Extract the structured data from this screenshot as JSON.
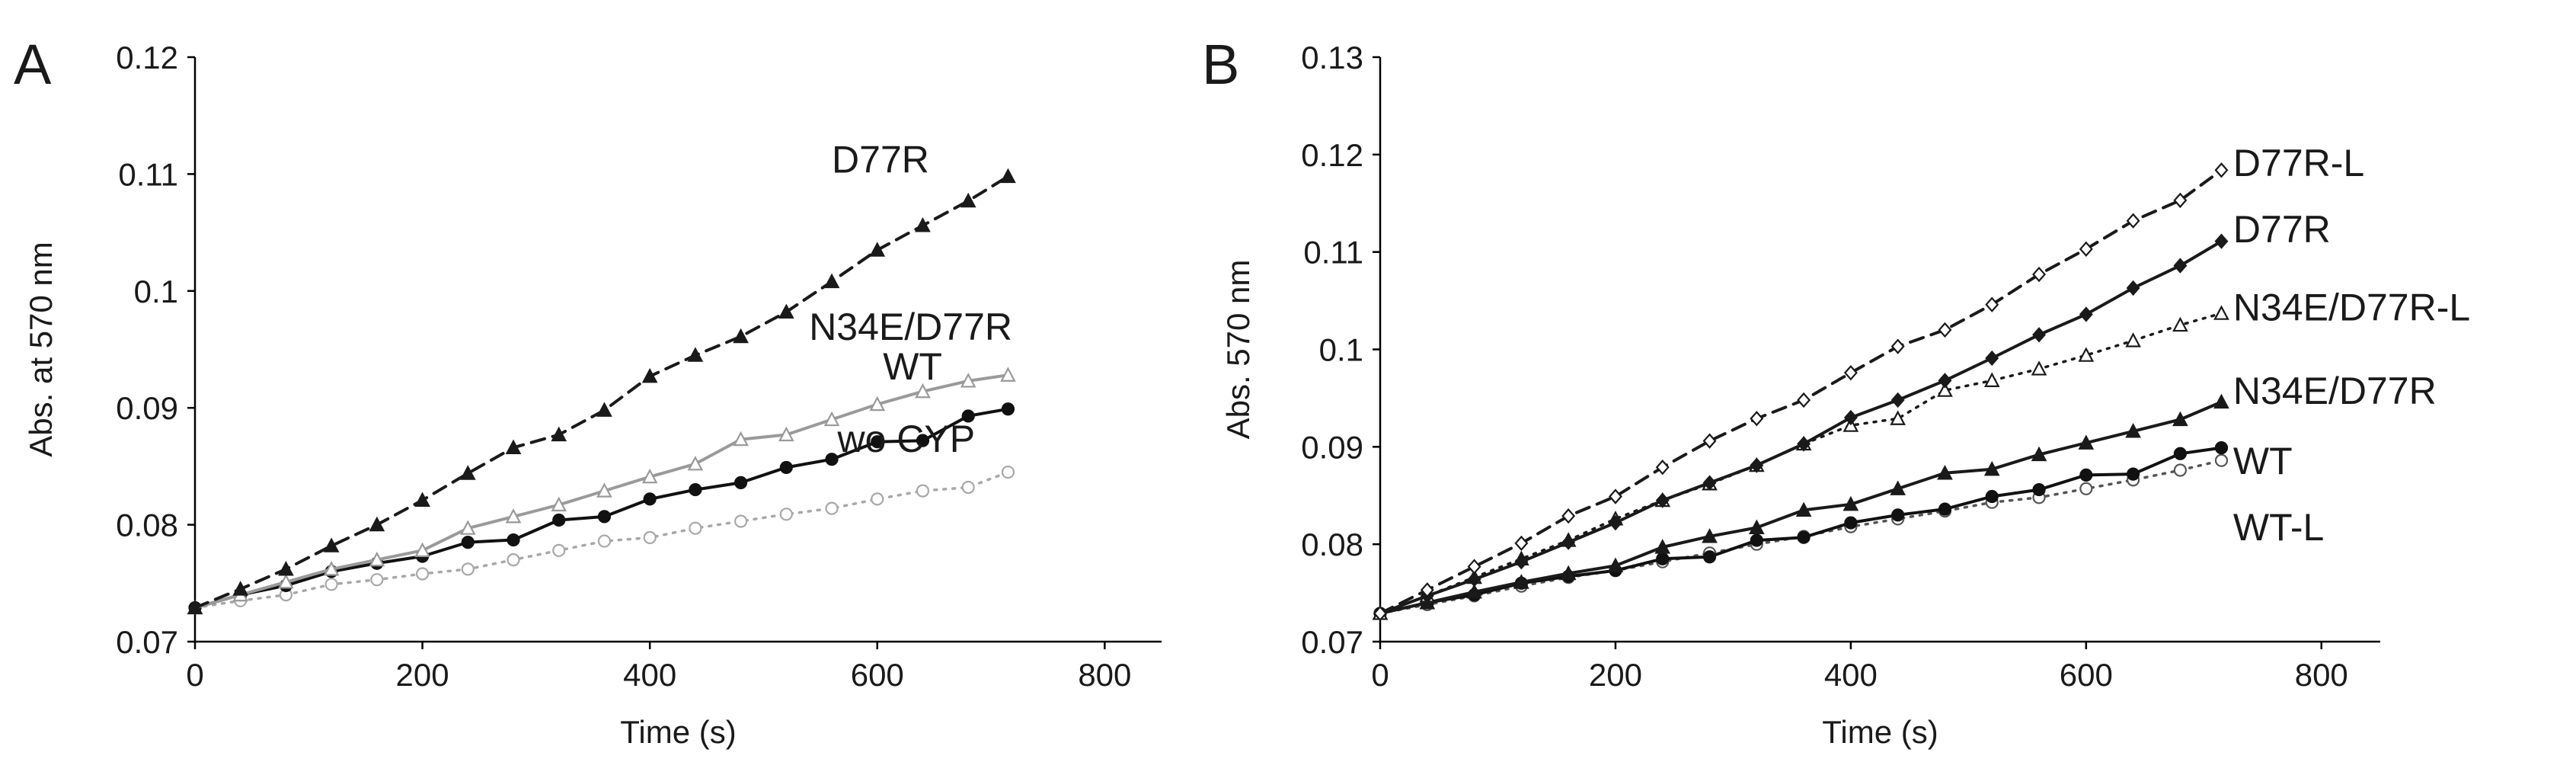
{
  "chart_data": [
    {
      "type": "line",
      "panel": "A",
      "title": "",
      "xlabel": "Time (s)",
      "ylabel": "Abs. at 570 nm",
      "xlim": [
        0,
        850
      ],
      "ylim": [
        0.07,
        0.12
      ],
      "x_ticks": [
        0,
        200,
        400,
        600,
        800
      ],
      "x_tick_labels": [
        "0",
        "200",
        "400",
        "600",
        "800"
      ],
      "y_ticks": [
        0.07,
        0.08,
        0.09,
        0.1,
        0.11,
        0.12
      ],
      "y_tick_labels": [
        "0.07",
        "0.08",
        "0.09",
        "0.1",
        "0.11",
        "0.12"
      ],
      "grid": false,
      "x": [
        0,
        40,
        80,
        120,
        160,
        200,
        240,
        280,
        320,
        360,
        400,
        440,
        480,
        520,
        560,
        600,
        640,
        680,
        715
      ],
      "series": [
        {
          "name": "D77R",
          "color": "#1a1a1a",
          "dash": "dashed",
          "marker": "filled-triangle",
          "values": [
            0.0729,
            0.0745,
            0.0762,
            0.0782,
            0.08,
            0.0821,
            0.0844,
            0.0866,
            0.0877,
            0.0898,
            0.0927,
            0.0945,
            0.0961,
            0.0982,
            0.1008,
            0.1035,
            0.1056,
            0.1077,
            0.1098
          ]
        },
        {
          "name": "N34E/D77R",
          "color": "#9a9a9a",
          "dash": "solid",
          "marker": "open-triangle",
          "values": [
            0.0729,
            0.074,
            0.0751,
            0.0762,
            0.077,
            0.0778,
            0.0797,
            0.0807,
            0.0817,
            0.0829,
            0.0841,
            0.0852,
            0.0873,
            0.0877,
            0.089,
            0.0903,
            0.0914,
            0.0923,
            0.0928
          ]
        },
        {
          "name": "WT",
          "color": "#111111",
          "dash": "solid",
          "marker": "filled-circle",
          "values": [
            0.0729,
            0.074,
            0.0748,
            0.076,
            0.0767,
            0.0773,
            0.0785,
            0.0787,
            0.0804,
            0.0807,
            0.0822,
            0.083,
            0.0836,
            0.0849,
            0.0856,
            0.0871,
            0.0872,
            0.0893,
            0.0899
          ]
        },
        {
          "name": "wo CYP",
          "color": "#a8a8a8",
          "dash": "dotted",
          "marker": "open-circle",
          "values": [
            0.0729,
            0.0735,
            0.074,
            0.0749,
            0.0753,
            0.0758,
            0.0762,
            0.077,
            0.0778,
            0.0786,
            0.0789,
            0.0797,
            0.0803,
            0.0809,
            0.0814,
            0.0822,
            0.0829,
            0.0832,
            0.0845
          ]
        }
      ],
      "labels": [
        {
          "text": "D77R",
          "x": 560,
          "y": 0.1113
        },
        {
          "text": "N34E/D77R",
          "x": 540,
          "y": 0.097
        },
        {
          "text": "WT",
          "x": 605,
          "y": 0.0936
        },
        {
          "text": "wo CYP",
          "x": 565,
          "y": 0.0874
        }
      ]
    },
    {
      "type": "line",
      "panel": "B",
      "title": "",
      "xlabel": "Time (s)",
      "ylabel": "Abs. 570 nm",
      "xlim": [
        0,
        850
      ],
      "ylim": [
        0.07,
        0.13
      ],
      "x_ticks": [
        0,
        200,
        400,
        600,
        800
      ],
      "x_tick_labels": [
        "0",
        "200",
        "400",
        "600",
        "800"
      ],
      "y_ticks": [
        0.07,
        0.08,
        0.09,
        0.1,
        0.11,
        0.12,
        0.13
      ],
      "y_tick_labels": [
        "0.07",
        "0.08",
        "0.09",
        "0.1",
        "0.11",
        "0.12",
        "0.13"
      ],
      "grid": false,
      "x": [
        0,
        40,
        80,
        120,
        160,
        200,
        240,
        280,
        320,
        360,
        400,
        440,
        480,
        520,
        560,
        600,
        640,
        680,
        715
      ],
      "series": [
        {
          "name": "D77R-L",
          "color": "#1a1a1a",
          "dash": "dashed",
          "marker": "open-diamond",
          "values": [
            0.0729,
            0.0753,
            0.0777,
            0.0801,
            0.0829,
            0.0849,
            0.0879,
            0.0906,
            0.0929,
            0.0948,
            0.0976,
            0.1003,
            0.102,
            0.1046,
            0.1077,
            0.1103,
            0.1132,
            0.1153,
            0.1184
          ]
        },
        {
          "name": "D77R",
          "color": "#1a1a1a",
          "dash": "solid",
          "marker": "filled-diamond",
          "values": [
            0.0729,
            0.0747,
            0.0764,
            0.0782,
            0.0802,
            0.0822,
            0.0845,
            0.0863,
            0.0881,
            0.0903,
            0.093,
            0.0948,
            0.0968,
            0.0991,
            0.1015,
            0.1036,
            0.1063,
            0.1086,
            0.1111
          ]
        },
        {
          "name": "N34E/D77R-L",
          "color": "#1a1a1a",
          "dash": "dotted",
          "marker": "open-triangle",
          "values": [
            0.0729,
            0.0747,
            0.0766,
            0.0785,
            0.0804,
            0.0826,
            0.0845,
            0.0862,
            0.0881,
            0.0903,
            0.0922,
            0.0929,
            0.0958,
            0.0968,
            0.098,
            0.0994,
            0.1009,
            0.1025,
            0.1037
          ]
        },
        {
          "name": "N34E/D77R",
          "color": "#1a1a1a",
          "dash": "solid",
          "marker": "filled-triangle",
          "values": [
            0.0729,
            0.074,
            0.0751,
            0.0761,
            0.077,
            0.0778,
            0.0797,
            0.0808,
            0.0817,
            0.0835,
            0.0841,
            0.0857,
            0.0873,
            0.0877,
            0.0892,
            0.0904,
            0.0916,
            0.0928,
            0.0946
          ]
        },
        {
          "name": "WT",
          "color": "#111111",
          "dash": "solid",
          "marker": "filled-circle",
          "values": [
            0.0729,
            0.074,
            0.0748,
            0.076,
            0.0767,
            0.0773,
            0.0785,
            0.0787,
            0.0804,
            0.0807,
            0.0822,
            0.083,
            0.0836,
            0.0849,
            0.0856,
            0.0871,
            0.0872,
            0.0893,
            0.0899
          ]
        },
        {
          "name": "WT-L",
          "color": "#555555",
          "dash": "dotted",
          "marker": "open-circle",
          "values": [
            0.0729,
            0.0738,
            0.0747,
            0.0757,
            0.0766,
            0.0773,
            0.0782,
            0.0791,
            0.08,
            0.0808,
            0.0818,
            0.0826,
            0.0834,
            0.0843,
            0.0848,
            0.0857,
            0.0866,
            0.0876,
            0.0886
          ]
        }
      ],
      "labels": [
        {
          "text": "D77R-L",
          "x": 725,
          "y": 0.1192
        },
        {
          "text": "D77R",
          "x": 725,
          "y": 0.1124
        },
        {
          "text": "N34E/D77R-L",
          "x": 725,
          "y": 0.1044
        },
        {
          "text": "N34E/D77R",
          "x": 725,
          "y": 0.0958
        },
        {
          "text": "WT",
          "x": 725,
          "y": 0.0886
        },
        {
          "text": "WT-L",
          "x": 725,
          "y": 0.0818
        }
      ]
    }
  ]
}
